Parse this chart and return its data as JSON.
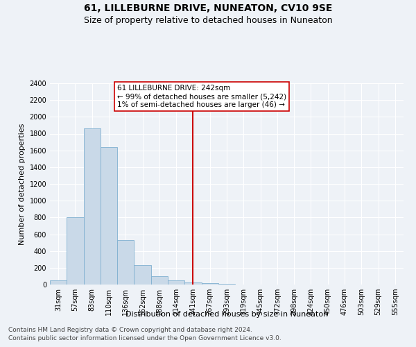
{
  "title": "61, LILLEBURNE DRIVE, NUNEATON, CV10 9SE",
  "subtitle": "Size of property relative to detached houses in Nuneaton",
  "xlabel": "Distribution of detached houses by size in Nuneaton",
  "ylabel": "Number of detached properties",
  "categories": [
    "31sqm",
    "57sqm",
    "83sqm",
    "110sqm",
    "136sqm",
    "162sqm",
    "188sqm",
    "214sqm",
    "241sqm",
    "267sqm",
    "293sqm",
    "319sqm",
    "345sqm",
    "372sqm",
    "398sqm",
    "424sqm",
    "450sqm",
    "476sqm",
    "503sqm",
    "529sqm",
    "555sqm"
  ],
  "values": [
    50,
    800,
    1860,
    1640,
    530,
    235,
    100,
    50,
    25,
    15,
    5,
    2,
    1,
    0,
    0,
    0,
    0,
    0,
    0,
    0,
    0
  ],
  "bar_color": "#c9d9e8",
  "bar_edge_color": "#7fb0d0",
  "vline_x_index": 8,
  "vline_color": "#cc0000",
  "annotation_line1": "61 LILLEBURNE DRIVE: 242sqm",
  "annotation_line2": "← 99% of detached houses are smaller (5,242)",
  "annotation_line3": "1% of semi-detached houses are larger (46) →",
  "annotation_box_color": "#cc0000",
  "ylim": [
    0,
    2400
  ],
  "yticks": [
    0,
    200,
    400,
    600,
    800,
    1000,
    1200,
    1400,
    1600,
    1800,
    2000,
    2200,
    2400
  ],
  "footer_line1": "Contains HM Land Registry data © Crown copyright and database right 2024.",
  "footer_line2": "Contains public sector information licensed under the Open Government Licence v3.0.",
  "bg_color": "#eef2f7",
  "grid_color": "#ffffff",
  "title_fontsize": 10,
  "subtitle_fontsize": 9,
  "axis_label_fontsize": 8,
  "tick_fontsize": 7,
  "annotation_fontsize": 7.5,
  "footer_fontsize": 6.5
}
